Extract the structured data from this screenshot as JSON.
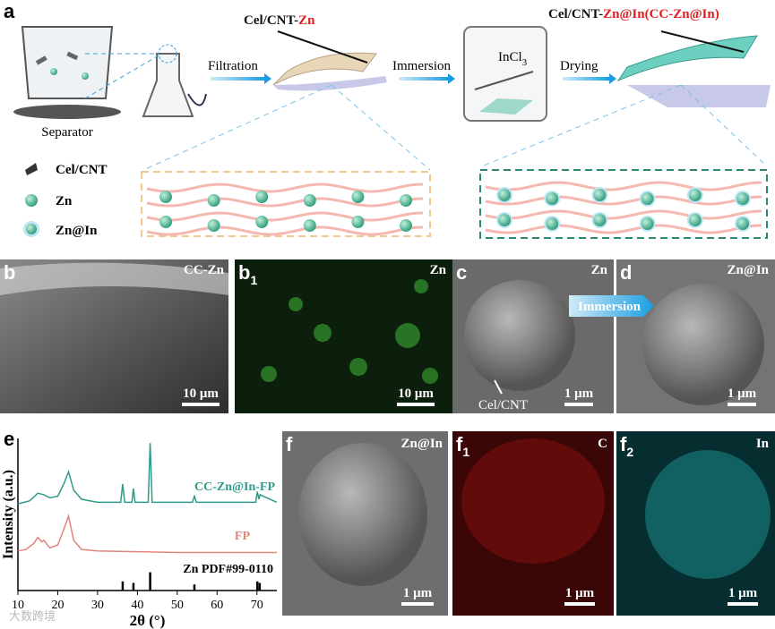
{
  "panel_a": {
    "label": "a",
    "separator": "Separator",
    "filtration": "Filtration",
    "product1": {
      "prefix": "Cel/CNT-",
      "highlight": "Zn"
    },
    "immersion": "Immersion",
    "solution": {
      "base": "InCl",
      "subscript": "3"
    },
    "drying": "Drying",
    "product2": {
      "prefix": "Cel/CNT-",
      "highlight": "Zn@In(CC-Zn@In)"
    },
    "legend": [
      "Cel/CNT",
      "Zn",
      "Zn@In"
    ]
  },
  "panel_b": {
    "label": "b",
    "title": "CC-Zn",
    "scale_bar": "10 μm"
  },
  "panel_b1": {
    "label": "b",
    "subscript": "1",
    "title": "Zn",
    "scale_bar": "10 μm"
  },
  "panel_c": {
    "label": "c",
    "title": "Zn",
    "annotation": "Cel/CNT",
    "scale_bar": "1 μm"
  },
  "panel_d": {
    "label": "d",
    "title": "Zn@In",
    "arrow_label": "Immersion",
    "scale_bar": "1 μm"
  },
  "panel_e": {
    "label": "e",
    "chart_data": {
      "type": "line",
      "xlabel": "2θ (°)",
      "ylabel": "Intensity (a.u.)",
      "xlim": [
        10,
        75
      ],
      "xticks": [
        10,
        20,
        30,
        40,
        50,
        60,
        70
      ],
      "ylim": [
        0,
        100
      ],
      "series": [
        {
          "name": "CC-Zn@In-FP",
          "color": "#2e9c8a",
          "x": [
            10,
            13,
            15,
            16.5,
            18,
            20,
            21.5,
            22.7,
            24,
            26,
            30,
            35.8,
            36.3,
            36.8,
            38.6,
            39,
            39.4,
            42.7,
            43.2,
            43.7,
            53.8,
            54.3,
            54.8,
            69.7,
            70.1,
            70.5,
            70.8,
            75
          ],
          "values": [
            57,
            59,
            64,
            63,
            61,
            62,
            70,
            78,
            66,
            60,
            58,
            58,
            70,
            58,
            58,
            67,
            58,
            58,
            97,
            58,
            58,
            62,
            58,
            58,
            65,
            60,
            63,
            58
          ]
        },
        {
          "name": "FP",
          "color": "#e0857a",
          "x": [
            10,
            12,
            14,
            15,
            16,
            16.5,
            18,
            20,
            21.5,
            22.7,
            24,
            26,
            30,
            40,
            50,
            60,
            75
          ],
          "values": [
            26,
            27,
            31,
            35,
            32,
            33,
            28,
            30,
            40,
            49,
            33,
            27,
            26,
            25.5,
            25,
            25,
            25
          ]
        },
        {
          "name": "Zn PDF#99-0110",
          "type": "bar",
          "color": "#000000",
          "x": [
            36.3,
            39.0,
            43.2,
            54.3,
            70.1,
            70.7
          ],
          "values": [
            6,
            5,
            12,
            4,
            6,
            5
          ]
        }
      ]
    }
  },
  "panel_f": {
    "label": "f",
    "title": "Zn@In",
    "scale_bar": "1 μm"
  },
  "panel_f1": {
    "label": "f",
    "subscript": "1",
    "title": "C",
    "scale_bar": "1 μm"
  },
  "panel_f2": {
    "label": "f",
    "subscript": "2",
    "title": "In",
    "scale_bar": "1 μm"
  },
  "watermark": "大数跨境"
}
